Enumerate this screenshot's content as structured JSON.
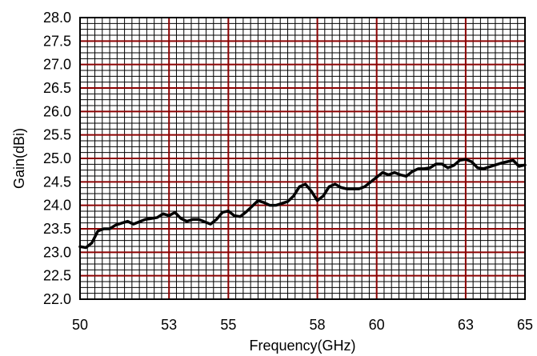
{
  "colors": {
    "major_grid": "#8b0000",
    "minor_grid": "#000000",
    "line": "#000000",
    "frame": "#000000",
    "background": "#ffffff"
  },
  "chart_data": {
    "type": "line",
    "xlabel": "Frequency(GHz)",
    "ylabel": "Gain(dBi)",
    "xlim": [
      50,
      65
    ],
    "ylim": [
      22.0,
      28.0
    ],
    "x_ticks": [
      50,
      53,
      55,
      58,
      60,
      63,
      65
    ],
    "x_tick_labels": [
      "50",
      "53",
      "55",
      "58",
      "60",
      "63",
      "65"
    ],
    "y_ticks": [
      22.0,
      22.5,
      23.0,
      23.5,
      24.0,
      24.5,
      25.0,
      25.5,
      26.0,
      26.5,
      27.0,
      27.5,
      28.0
    ],
    "y_tick_labels": [
      "22.0",
      "22.5",
      "23.0",
      "23.5",
      "24.0",
      "24.5",
      "25.0",
      "25.5",
      "26.0",
      "26.5",
      "27.0",
      "27.5",
      "28.0"
    ],
    "grid": true,
    "minor_grid": {
      "x_step": 0.25,
      "y_step": 0.125
    },
    "series": [
      {
        "color": "#000000",
        "x": [
          50.0,
          50.2,
          50.4,
          50.6,
          50.8,
          51.0,
          51.2,
          51.4,
          51.6,
          51.8,
          52.0,
          52.2,
          52.4,
          52.6,
          52.8,
          53.0,
          53.2,
          53.4,
          53.6,
          53.8,
          54.0,
          54.2,
          54.4,
          54.6,
          54.8,
          55.0,
          55.2,
          55.4,
          55.6,
          55.8,
          56.0,
          56.2,
          56.4,
          56.6,
          56.8,
          57.0,
          57.2,
          57.4,
          57.6,
          57.8,
          58.0,
          58.2,
          58.4,
          58.6,
          58.8,
          59.0,
          59.2,
          59.4,
          59.6,
          59.8,
          60.0,
          60.2,
          60.4,
          60.6,
          60.8,
          61.0,
          61.2,
          61.4,
          61.6,
          61.8,
          62.0,
          62.2,
          62.4,
          62.6,
          62.8,
          63.0,
          63.2,
          63.4,
          63.6,
          63.8,
          64.0,
          64.2,
          64.4,
          64.6,
          64.8,
          65.0
        ],
        "values": [
          23.12,
          23.1,
          23.2,
          23.45,
          23.5,
          23.5,
          23.58,
          23.62,
          23.66,
          23.6,
          23.65,
          23.7,
          23.72,
          23.74,
          23.82,
          23.78,
          23.85,
          23.72,
          23.66,
          23.7,
          23.7,
          23.65,
          23.6,
          23.7,
          23.85,
          23.88,
          23.78,
          23.76,
          23.86,
          23.98,
          24.1,
          24.06,
          24.0,
          24.0,
          24.04,
          24.08,
          24.2,
          24.4,
          24.45,
          24.3,
          24.1,
          24.2,
          24.4,
          24.45,
          24.38,
          24.35,
          24.35,
          24.35,
          24.4,
          24.5,
          24.6,
          24.7,
          24.65,
          24.7,
          24.65,
          24.62,
          24.72,
          24.78,
          24.78,
          24.8,
          24.88,
          24.88,
          24.8,
          24.85,
          24.96,
          24.98,
          24.93,
          24.8,
          24.78,
          24.82,
          24.86,
          24.9,
          24.93,
          24.96,
          24.83,
          24.86
        ]
      }
    ]
  }
}
